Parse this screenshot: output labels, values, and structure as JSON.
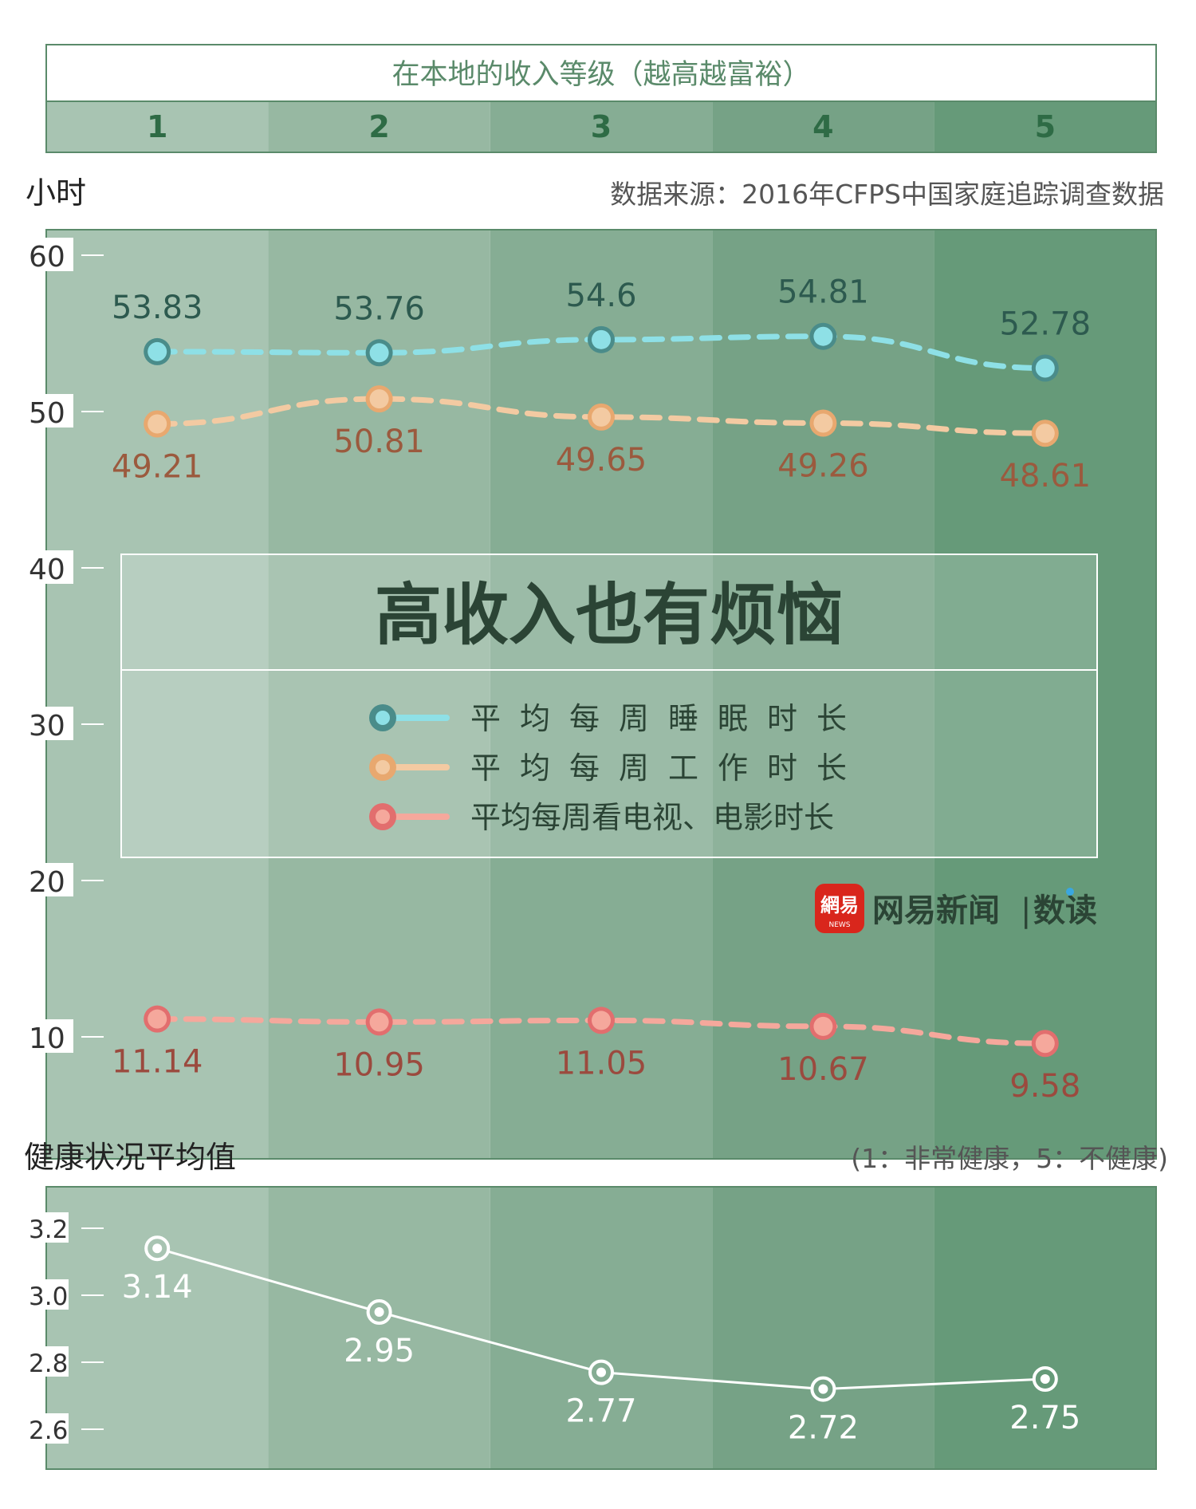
{
  "header": {
    "title": "在本地的收入等级（越高越富裕）",
    "levels": [
      "1",
      "2",
      "3",
      "4",
      "5"
    ]
  },
  "main_chart": {
    "unit_label": "小时",
    "source": "数据来源：2016年CFPS中国家庭追踪调查数据"
  },
  "overlay": {
    "title": "高收入也有烦恼"
  },
  "brand": {
    "logo_text": "網易",
    "logo_sub": "NEWS",
    "name": "网易新闻",
    "sub": "数读"
  },
  "health_chart": {
    "title": "健康状况平均值",
    "note": "(1：非常健康，5：不健康)"
  },
  "colors": {
    "header_border": "#5a8a6a",
    "header_text": "#5a8a6a",
    "level_text": "#2e6b45",
    "band_1": "#a8c4b2",
    "band_2": "#97b8a2",
    "band_3": "#86ad94",
    "band_4": "#76a286",
    "band_5": "#669a79",
    "plot_border": "#5a8a6a",
    "axis_text": "#333333",
    "tick_color": "#ffffff",
    "sleep_line": "#8ee0e6",
    "sleep_dot": "#4a8c8a",
    "sleep_label": "#2d5a4f",
    "work_line": "#f3caa2",
    "work_dot": "#e8a86f",
    "work_label": "#9b5a3e",
    "tv_line": "#f5a89c",
    "tv_dot": "#e26e6e",
    "tv_label": "#9b4a3e",
    "overlay_title": "#2b4435",
    "overlay_border": "#ffffff",
    "legend_text": "#2b4435",
    "brand_red": "#d9261c",
    "brand_text": "#2b4435",
    "health_line": "#ffffff",
    "health_label": "#ffffff"
  },
  "chart_data": [
    {
      "type": "line",
      "categories": [
        "1",
        "2",
        "3",
        "4",
        "5"
      ],
      "ylim": [
        0,
        60
      ],
      "yticks": [
        10,
        20,
        30,
        40,
        50,
        60
      ],
      "ylabel": "小时",
      "grid": false,
      "legend_position": "center",
      "series": [
        {
          "name": "平均每周睡眠时长",
          "values": [
            53.83,
            53.76,
            54.6,
            54.81,
            52.78
          ],
          "labels": [
            "53.83",
            "53.76",
            "54.6",
            "54.81",
            "52.78"
          ]
        },
        {
          "name": "平均每周工作时长",
          "values": [
            49.21,
            50.81,
            49.65,
            49.26,
            48.61
          ],
          "labels": [
            "49.21",
            "50.81",
            "49.65",
            "49.26",
            "48.61"
          ]
        },
        {
          "name": "平均每周看电视、电影时长",
          "values": [
            11.14,
            10.95,
            11.05,
            10.67,
            9.58
          ],
          "labels": [
            "11.14",
            "10.95",
            "11.05",
            "10.67",
            "9.58"
          ]
        }
      ]
    },
    {
      "type": "line",
      "categories": [
        "1",
        "2",
        "3",
        "4",
        "5"
      ],
      "ylim": [
        2.6,
        3.2
      ],
      "yticks": [
        2.6,
        2.8,
        3.0,
        3.2
      ],
      "ytick_labels": [
        "2.6",
        "2.8",
        "3.0",
        "3.2"
      ],
      "title": "健康状况平均值",
      "grid": false,
      "series": [
        {
          "values": [
            3.14,
            2.95,
            2.77,
            2.72,
            2.75
          ],
          "labels": [
            "3.14",
            "2.95",
            "2.77",
            "2.72",
            "2.75"
          ]
        }
      ]
    }
  ]
}
